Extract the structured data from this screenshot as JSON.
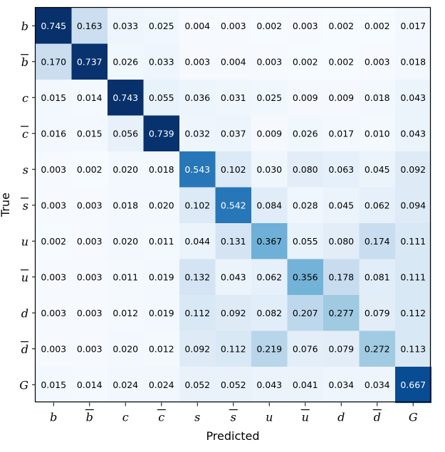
{
  "chart_data": {
    "type": "heatmap",
    "title": "",
    "xlabel": "Predicted",
    "ylabel": "True",
    "colormap": "Blues",
    "value_range": [
      0,
      0.745
    ],
    "categories": [
      {
        "letter": "b",
        "bar": false
      },
      {
        "letter": "b",
        "bar": true
      },
      {
        "letter": "c",
        "bar": false
      },
      {
        "letter": "c",
        "bar": true
      },
      {
        "letter": "s",
        "bar": false
      },
      {
        "letter": "s",
        "bar": true
      },
      {
        "letter": "u",
        "bar": false
      },
      {
        "letter": "u",
        "bar": true
      },
      {
        "letter": "d",
        "bar": false
      },
      {
        "letter": "d",
        "bar": true
      },
      {
        "letter": "G",
        "bar": false
      }
    ],
    "matrix": [
      [
        0.745,
        0.163,
        0.033,
        0.025,
        0.004,
        0.003,
        0.002,
        0.003,
        0.002,
        0.002,
        0.017
      ],
      [
        0.17,
        0.737,
        0.026,
        0.033,
        0.003,
        0.004,
        0.003,
        0.002,
        0.002,
        0.003,
        0.018
      ],
      [
        0.015,
        0.014,
        0.743,
        0.055,
        0.036,
        0.031,
        0.025,
        0.009,
        0.009,
        0.018,
        0.043
      ],
      [
        0.016,
        0.015,
        0.056,
        0.739,
        0.032,
        0.037,
        0.009,
        0.026,
        0.017,
        0.01,
        0.043
      ],
      [
        0.003,
        0.002,
        0.02,
        0.018,
        0.543,
        0.102,
        0.03,
        0.08,
        0.063,
        0.045,
        0.092
      ],
      [
        0.003,
        0.003,
        0.018,
        0.02,
        0.102,
        0.542,
        0.084,
        0.028,
        0.045,
        0.062,
        0.094
      ],
      [
        0.002,
        0.003,
        0.02,
        0.011,
        0.044,
        0.131,
        0.367,
        0.055,
        0.08,
        0.174,
        0.111
      ],
      [
        0.003,
        0.003,
        0.011,
        0.019,
        0.132,
        0.043,
        0.062,
        0.356,
        0.178,
        0.081,
        0.111
      ],
      [
        0.003,
        0.003,
        0.012,
        0.019,
        0.112,
        0.092,
        0.082,
        0.207,
        0.277,
        0.079,
        0.112
      ],
      [
        0.003,
        0.003,
        0.02,
        0.012,
        0.092,
        0.112,
        0.219,
        0.076,
        0.079,
        0.272,
        0.113
      ],
      [
        0.015,
        0.014,
        0.024,
        0.024,
        0.052,
        0.052,
        0.043,
        0.041,
        0.034,
        0.034,
        0.667
      ]
    ]
  }
}
